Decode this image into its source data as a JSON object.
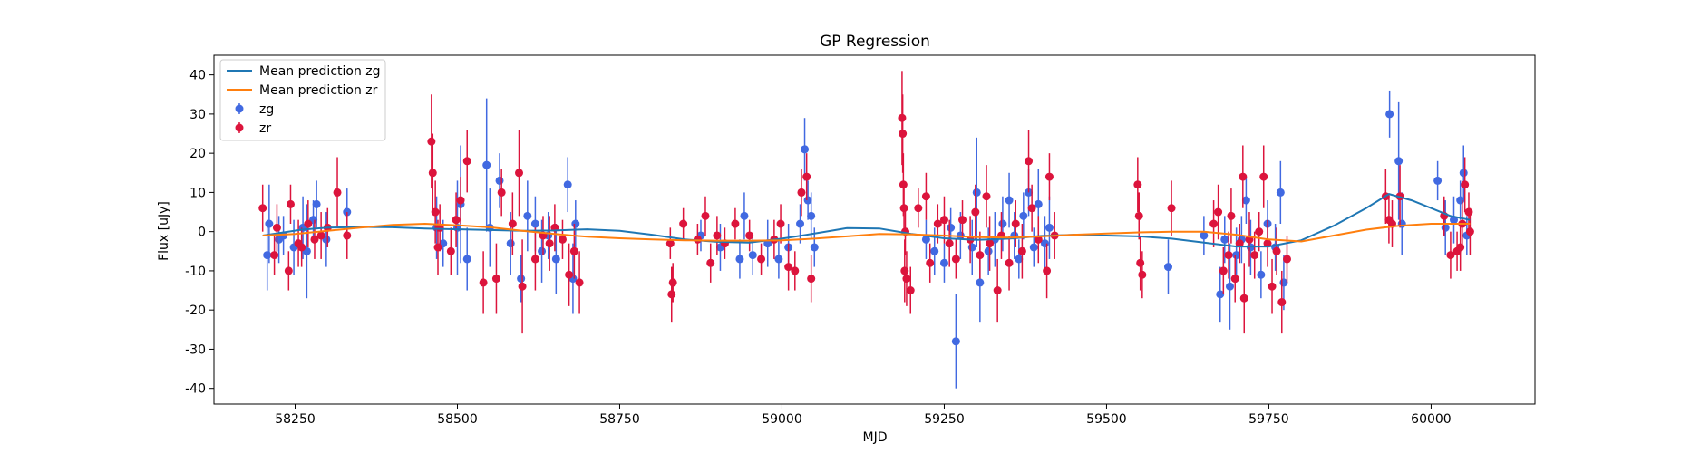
{
  "chart_data": {
    "type": "scatter",
    "title": "GP Regression",
    "xlabel": "MJD",
    "ylabel": "Flux [uJy]",
    "xlim": [
      58125,
      60160
    ],
    "ylim": [
      -44,
      45
    ],
    "xticks": [
      58250,
      58500,
      58750,
      59000,
      59250,
      59500,
      59750,
      60000
    ],
    "yticks": [
      -40,
      -30,
      -20,
      -10,
      0,
      10,
      20,
      30,
      40
    ],
    "grid": false,
    "legend_position": "top-left",
    "series": [
      {
        "name": "Mean prediction zg",
        "kind": "line",
        "color": "#1f77b4",
        "x": [
          58200,
          58260,
          58300,
          58350,
          58400,
          58450,
          58500,
          58550,
          58600,
          58650,
          58700,
          58750,
          58800,
          58850,
          58900,
          58950,
          59000,
          59050,
          59100,
          59150,
          59200,
          59250,
          59300,
          59350,
          59400,
          59450,
          59500,
          59550,
          59600,
          59650,
          59700,
          59750,
          59800,
          59850,
          59900,
          59935,
          59970,
          60000,
          60030,
          60060
        ],
        "y": [
          -1.0,
          0.5,
          1.0,
          1.2,
          1.1,
          0.8,
          0.6,
          0.4,
          0.2,
          0.3,
          0.6,
          0.2,
          -0.8,
          -2.0,
          -2.6,
          -2.8,
          -1.8,
          -0.5,
          0.9,
          0.8,
          -0.6,
          -1.7,
          -2.1,
          -1.8,
          -1.1,
          -0.8,
          -1.0,
          -1.2,
          -1.8,
          -2.8,
          -3.8,
          -3.8,
          -2.2,
          1.5,
          6.0,
          9.6,
          8.0,
          6.0,
          4.0,
          3.0
        ]
      },
      {
        "name": "Mean prediction zr",
        "kind": "line",
        "color": "#ff7f0e",
        "x": [
          58200,
          58250,
          58300,
          58350,
          58400,
          58450,
          58500,
          58550,
          58600,
          58650,
          58700,
          58750,
          58800,
          58850,
          58900,
          58950,
          59000,
          59050,
          59100,
          59150,
          59200,
          59250,
          59300,
          59350,
          59400,
          59450,
          59500,
          59550,
          59600,
          59650,
          59700,
          59750,
          59800,
          59850,
          59900,
          59950,
          60000,
          60060
        ],
        "y": [
          -1.0,
          -0.6,
          0.2,
          1.0,
          1.7,
          2.0,
          1.6,
          1.1,
          0.2,
          -0.6,
          -1.3,
          -1.7,
          -2.0,
          -2.2,
          -2.3,
          -2.3,
          -2.2,
          -1.8,
          -1.2,
          -0.6,
          -0.7,
          -1.0,
          -1.4,
          -1.5,
          -1.2,
          -0.8,
          -0.5,
          -0.2,
          0.0,
          0.0,
          -0.8,
          -2.0,
          -2.5,
          -1.0,
          0.5,
          1.5,
          2.0,
          2.0
        ]
      },
      {
        "name": "zg",
        "kind": "errorbar",
        "color": "#4169e1",
        "points": [
          [
            58207,
            -6,
            9
          ],
          [
            58210,
            2,
            10
          ],
          [
            58225,
            -2,
            6
          ],
          [
            58232,
            -1,
            5
          ],
          [
            58248,
            -4,
            7
          ],
          [
            58262,
            1,
            8
          ],
          [
            58268,
            -5,
            12
          ],
          [
            58278,
            3,
            5
          ],
          [
            58283,
            7,
            6
          ],
          [
            58298,
            -2,
            7
          ],
          [
            58330,
            5,
            6
          ],
          [
            58468,
            1,
            8
          ],
          [
            58478,
            -3,
            6
          ],
          [
            58500,
            1,
            12
          ],
          [
            58505,
            7,
            15
          ],
          [
            58515,
            -7,
            8
          ],
          [
            58545,
            17,
            17
          ],
          [
            58550,
            1,
            10
          ],
          [
            58565,
            13,
            7
          ],
          [
            58582,
            -3,
            8
          ],
          [
            58598,
            -12,
            6
          ],
          [
            58608,
            4,
            9
          ],
          [
            58620,
            2,
            7
          ],
          [
            58630,
            -5,
            8
          ],
          [
            58640,
            -1,
            6
          ],
          [
            58652,
            -7,
            9
          ],
          [
            58670,
            12,
            7
          ],
          [
            58678,
            -12,
            9
          ],
          [
            58682,
            2,
            6
          ],
          [
            58875,
            -1,
            4
          ],
          [
            58905,
            -4,
            6
          ],
          [
            58935,
            -7,
            5
          ],
          [
            58942,
            4,
            6
          ],
          [
            58955,
            -6,
            5
          ],
          [
            58978,
            -3,
            6
          ],
          [
            58995,
            -7,
            5
          ],
          [
            59010,
            -4,
            6
          ],
          [
            59028,
            2,
            5
          ],
          [
            59035,
            21,
            8
          ],
          [
            59040,
            8,
            5
          ],
          [
            59045,
            4,
            6
          ],
          [
            59050,
            -4,
            5
          ],
          [
            59222,
            -2,
            5
          ],
          [
            59235,
            -5,
            6
          ],
          [
            59250,
            -8,
            5
          ],
          [
            59260,
            1,
            5
          ],
          [
            59268,
            -28,
            12
          ],
          [
            59275,
            -1,
            6
          ],
          [
            59293,
            -4,
            7
          ],
          [
            59300,
            10,
            14
          ],
          [
            59305,
            -13,
            10
          ],
          [
            59318,
            -5,
            6
          ],
          [
            59328,
            -2,
            7
          ],
          [
            59340,
            2,
            7
          ],
          [
            59350,
            8,
            7
          ],
          [
            59358,
            -1,
            6
          ],
          [
            59365,
            -7,
            5
          ],
          [
            59372,
            4,
            6
          ],
          [
            59380,
            10,
            6
          ],
          [
            59388,
            -4,
            5
          ],
          [
            59395,
            7,
            9
          ],
          [
            59405,
            -3,
            7
          ],
          [
            59412,
            1,
            8
          ],
          [
            59595,
            -9,
            7
          ],
          [
            59650,
            -1,
            5
          ],
          [
            59675,
            -16,
            7
          ],
          [
            59682,
            -2,
            6
          ],
          [
            59690,
            -14,
            11
          ],
          [
            59700,
            -6,
            7
          ],
          [
            59708,
            -2,
            6
          ],
          [
            59715,
            8,
            6
          ],
          [
            59722,
            -4,
            7
          ],
          [
            59738,
            -11,
            6
          ],
          [
            59748,
            2,
            6
          ],
          [
            59760,
            -4,
            6
          ],
          [
            59768,
            10,
            8
          ],
          [
            59773,
            -13,
            7
          ],
          [
            59936,
            30,
            6
          ],
          [
            59950,
            18,
            15
          ],
          [
            59955,
            2,
            8
          ],
          [
            60022,
            1,
            7
          ],
          [
            60035,
            3,
            6
          ],
          [
            60045,
            8,
            5
          ],
          [
            60050,
            15,
            7
          ],
          [
            60055,
            -1,
            5
          ],
          [
            60010,
            13,
            5
          ]
        ]
      },
      {
        "name": "zr",
        "kind": "errorbar",
        "color": "#dc143c",
        "points": [
          [
            58200,
            6,
            6
          ],
          [
            58218,
            -6,
            5
          ],
          [
            58222,
            1,
            6
          ],
          [
            58240,
            -10,
            5
          ],
          [
            58243,
            7,
            5
          ],
          [
            58255,
            -3,
            6
          ],
          [
            58260,
            -4,
            5
          ],
          [
            58270,
            2,
            6
          ],
          [
            58280,
            -2,
            5
          ],
          [
            58290,
            -1,
            6
          ],
          [
            58300,
            1,
            5
          ],
          [
            58315,
            10,
            9
          ],
          [
            58330,
            -1,
            6
          ],
          [
            58460,
            23,
            12
          ],
          [
            58462,
            15,
            10
          ],
          [
            58466,
            5,
            8
          ],
          [
            58470,
            -4,
            7
          ],
          [
            58473,
            1,
            6
          ],
          [
            58490,
            -5,
            6
          ],
          [
            58498,
            3,
            7
          ],
          [
            58505,
            8,
            6
          ],
          [
            58515,
            18,
            8
          ],
          [
            58540,
            -13,
            8
          ],
          [
            58560,
            -12,
            9
          ],
          [
            58568,
            10,
            6
          ],
          [
            58585,
            2,
            8
          ],
          [
            58595,
            15,
            11
          ],
          [
            58600,
            -14,
            12
          ],
          [
            58620,
            -7,
            8
          ],
          [
            58632,
            -1,
            5
          ],
          [
            58642,
            -3,
            7
          ],
          [
            58650,
            1,
            6
          ],
          [
            58662,
            -2,
            5
          ],
          [
            58672,
            -11,
            8
          ],
          [
            58680,
            -5,
            7
          ],
          [
            58688,
            -13,
            8
          ],
          [
            58828,
            -3,
            4
          ],
          [
            58830,
            -16,
            7
          ],
          [
            58832,
            -13,
            5
          ],
          [
            58848,
            2,
            4
          ],
          [
            58870,
            -2,
            4
          ],
          [
            58882,
            4,
            5
          ],
          [
            58890,
            -8,
            5
          ],
          [
            58900,
            -1,
            5
          ],
          [
            58912,
            -3,
            4
          ],
          [
            58928,
            2,
            4
          ],
          [
            58950,
            -1,
            4
          ],
          [
            58968,
            -7,
            4
          ],
          [
            58988,
            -2,
            5
          ],
          [
            58998,
            2,
            5
          ],
          [
            59010,
            -9,
            6
          ],
          [
            59020,
            -10,
            5
          ],
          [
            59030,
            10,
            6
          ],
          [
            59038,
            14,
            6
          ],
          [
            59045,
            -12,
            6
          ],
          [
            59185,
            29,
            12
          ],
          [
            59186,
            25,
            10
          ],
          [
            59187,
            12,
            8
          ],
          [
            59188,
            6,
            6
          ],
          [
            59189,
            -10,
            8
          ],
          [
            59190,
            0,
            6
          ],
          [
            59192,
            -12,
            7
          ],
          [
            59198,
            -15,
            6
          ],
          [
            59210,
            6,
            5
          ],
          [
            59222,
            9,
            6
          ],
          [
            59228,
            -8,
            5
          ],
          [
            59240,
            2,
            5
          ],
          [
            59250,
            3,
            6
          ],
          [
            59258,
            -3,
            6
          ],
          [
            59268,
            -7,
            5
          ],
          [
            59278,
            3,
            5
          ],
          [
            59290,
            -2,
            6
          ],
          [
            59298,
            5,
            7
          ],
          [
            59305,
            -6,
            6
          ],
          [
            59315,
            9,
            8
          ],
          [
            59320,
            -3,
            7
          ],
          [
            59332,
            -15,
            8
          ],
          [
            59338,
            -1,
            6
          ],
          [
            59350,
            -8,
            7
          ],
          [
            59360,
            2,
            6
          ],
          [
            59370,
            -5,
            7
          ],
          [
            59380,
            18,
            8
          ],
          [
            59385,
            6,
            6
          ],
          [
            59395,
            -2,
            6
          ],
          [
            59408,
            -10,
            7
          ],
          [
            59412,
            14,
            6
          ],
          [
            59420,
            -1,
            6
          ],
          [
            59548,
            12,
            7
          ],
          [
            59550,
            4,
            6
          ],
          [
            59552,
            -8,
            7
          ],
          [
            59555,
            -11,
            6
          ],
          [
            59600,
            6,
            7
          ],
          [
            59665,
            2,
            6
          ],
          [
            59672,
            5,
            7
          ],
          [
            59680,
            -10,
            6
          ],
          [
            59688,
            -6,
            6
          ],
          [
            59692,
            4,
            7
          ],
          [
            59698,
            -12,
            6
          ],
          [
            59705,
            -3,
            5
          ],
          [
            59710,
            14,
            8
          ],
          [
            59712,
            -17,
            9
          ],
          [
            59720,
            -2,
            7
          ],
          [
            59728,
            -6,
            6
          ],
          [
            59735,
            0,
            5
          ],
          [
            59742,
            14,
            8
          ],
          [
            59748,
            -3,
            6
          ],
          [
            59755,
            -14,
            7
          ],
          [
            59762,
            -5,
            6
          ],
          [
            59770,
            -18,
            8
          ],
          [
            59778,
            -7,
            6
          ],
          [
            59930,
            9,
            7
          ],
          [
            59935,
            3,
            6
          ],
          [
            59940,
            2,
            6
          ],
          [
            59952,
            9,
            8
          ],
          [
            60020,
            4,
            5
          ],
          [
            60030,
            -6,
            6
          ],
          [
            60040,
            -5,
            5
          ],
          [
            60048,
            2,
            6
          ],
          [
            60052,
            12,
            7
          ],
          [
            60058,
            5,
            5
          ],
          [
            60060,
            0,
            6
          ],
          [
            60045,
            -4,
            6
          ]
        ]
      }
    ]
  }
}
